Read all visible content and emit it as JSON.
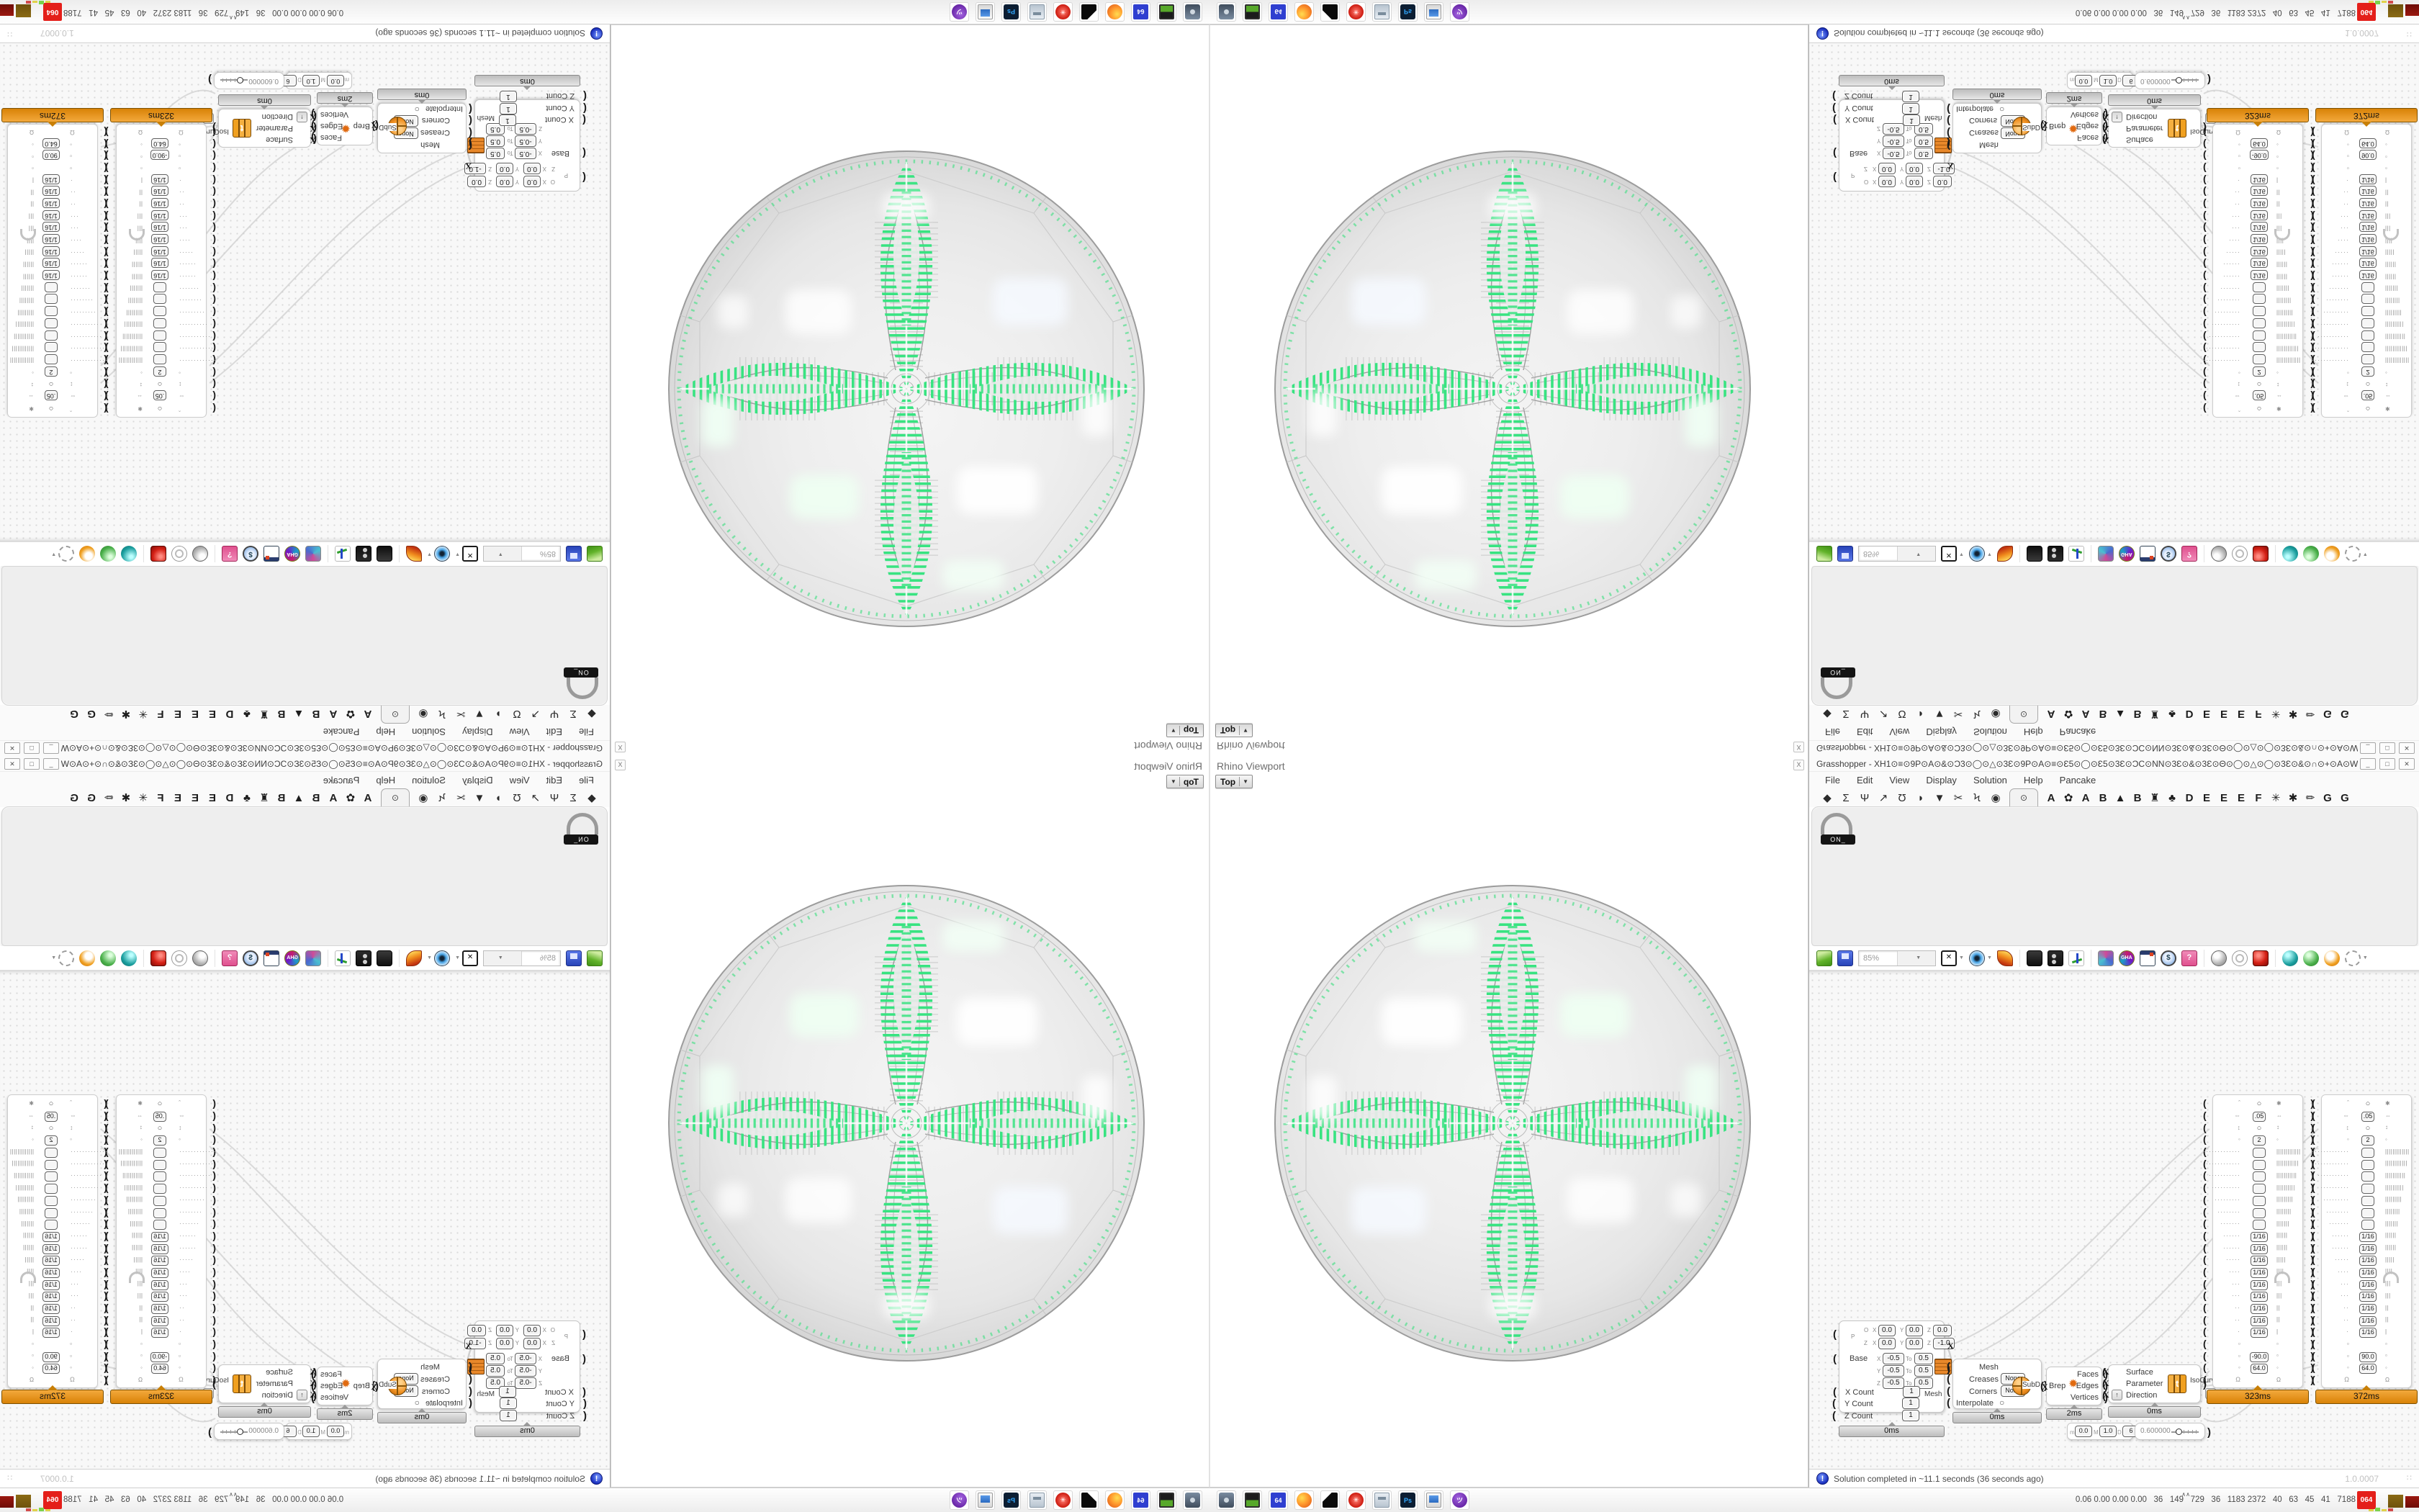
{
  "viewport": {
    "title": "Rhino Viewport",
    "camera": "Top",
    "camera_arrow": "▼",
    "close": "X"
  },
  "gh": {
    "title": "Grasshopper - XH1⊙≡⊙9P⊙A⊙&⊙Ɔ3⊙◯⊙△⊙3Ɛ⊙9P⊙A⊙≡⊙Ɛ5⊙◯⊙Ɛ5⊙3Ɛ⊙ƆC⊙NN⊙3Ɛ⊙&⊙3Ɛ⊙Θ⊙◯⊙△⊙◯⊙3Ɛ⊙&⊙∩⊙+⊙A⊙W⊙&⊙∩⊙ƆC⊙○⊙○⊙○⊙○⊙○⊙○⊙Ɔ_",
    "buttons": {
      "min": "_",
      "max": "□",
      "close": "✕"
    },
    "menu": [
      "File",
      "Edit",
      "View",
      "Display",
      "Solution",
      "Help",
      "Pancake"
    ],
    "tab_icons": [
      "◆",
      "Σ",
      "Ψ",
      "↗",
      "Ʊ",
      "◗",
      "▼",
      "✂",
      "Ϟ",
      "◉"
    ],
    "selected_tab_icon": "⊙",
    "tab_letters": [
      "A",
      "✿",
      "A",
      "B",
      "▲",
      "B",
      "♜",
      "♣",
      "D",
      "E",
      "E",
      "E",
      "F",
      "✳",
      "✱",
      "✏",
      "G",
      "G"
    ],
    "ribbon_chip": "ON_",
    "toolbar": {
      "zoom": "85%"
    },
    "status": {
      "icon": "!",
      "text": "Solution completed in ~11.1 seconds (36 seconds ago)",
      "version": "1.0.0007",
      "grip": "∷"
    }
  },
  "canvas": {
    "meshbox": {
      "p": "P",
      "o_l": "O",
      "z_l": "Z",
      "v": [
        "0.0",
        "0.0",
        "0.0",
        "0.0",
        "0.0",
        "-1.0"
      ],
      "ax": "X",
      "ay": "Y",
      "az": "Z",
      "to": "To",
      "dom_a": "-0.5",
      "dom_b": "0.5",
      "base": "Base",
      "mesh": "Mesh",
      "cx": "X Count",
      "cy": "Y Count",
      "cz": "Z Count",
      "one": "1",
      "time": "0ms"
    },
    "subd": {
      "mesh": "Mesh",
      "creases": "Creases",
      "corners": "Corners",
      "none": "None",
      "interp": "Interpolate",
      "out": "SubD",
      "time": "0ms"
    },
    "brep": {
      "in": "Brep",
      "o1": "Faces",
      "o2": "Edges",
      "o3": "Vertices",
      "time": "2ms"
    },
    "iso": {
      "i1": "Surface",
      "i2": "Parameter",
      "i3": "Direction",
      "out": "IsoCurve",
      "up": "↑",
      "down": "↓",
      "time": "0ms"
    },
    "mdm": {
      "m": "m",
      "mv": "0.0",
      "M": "M",
      "Mv": "1.0",
      "D": "D",
      "Dv": "6"
    },
    "slider": {
      "value": "0.600000"
    },
    "groups": [
      {
        "time": "323ms",
        "rows": [
          {
            "k": "sym",
            "l": "ˆ",
            "c": "○",
            "r": "✱"
          },
          {
            "k": "box",
            "l": "⇔",
            "v": ".05",
            "r": "⇔"
          },
          {
            "k": "sym",
            "l": "↕",
            "c": "○",
            "r": "↕"
          },
          {
            "k": "box",
            "l": "◦",
            "v": "2",
            "r": "◦"
          },
          {
            "k": "led",
            "d": 13
          },
          {
            "k": "led",
            "d": 12
          },
          {
            "k": "led",
            "d": 11
          },
          {
            "k": "led",
            "d": 10
          },
          {
            "k": "led",
            "d": 9
          },
          {
            "k": "led",
            "d": 8
          },
          {
            "k": "led",
            "d": 7
          },
          {
            "k": "led",
            "v": "1/16",
            "d": 6
          },
          {
            "k": "led",
            "v": "1/16",
            "d": 6
          },
          {
            "k": "led",
            "v": "1/16",
            "d": 5
          },
          {
            "k": "led",
            "v": "1/16",
            "d": 4
          },
          {
            "k": "led",
            "v": "1/16",
            "d": 3
          },
          {
            "k": "led",
            "v": "1/16",
            "d": 3
          },
          {
            "k": "led",
            "v": "1/16",
            "d": 2
          },
          {
            "k": "led",
            "v": "1/16",
            "d": 2
          },
          {
            "k": "led",
            "v": "1/16",
            "d": 1
          },
          {
            "k": "sym",
            "l": "▫",
            "c": "",
            "r": "▫"
          },
          {
            "k": "box",
            "l": "▫",
            "v": "-90.0",
            "r": "▫"
          },
          {
            "k": "box",
            "l": "◦",
            "v": "64.0",
            "r": "◦"
          },
          {
            "k": "sym",
            "l": "Ω",
            "c": "",
            "r": "Ω"
          }
        ]
      },
      {
        "time": "372ms",
        "rows": [
          {
            "k": "sym",
            "l": "ˆ",
            "c": "○",
            "r": "✱"
          },
          {
            "k": "box",
            "l": "⇔",
            "v": ".05",
            "r": "⇔"
          },
          {
            "k": "sym",
            "l": "↕",
            "c": "○",
            "r": "↕"
          },
          {
            "k": "box",
            "l": "◦",
            "v": "2",
            "r": "◦"
          },
          {
            "k": "led",
            "d": 13
          },
          {
            "k": "led",
            "d": 12
          },
          {
            "k": "led",
            "d": 11
          },
          {
            "k": "led",
            "d": 10
          },
          {
            "k": "led",
            "d": 9
          },
          {
            "k": "led",
            "d": 8
          },
          {
            "k": "led",
            "d": 7
          },
          {
            "k": "led",
            "v": "1/16",
            "d": 6
          },
          {
            "k": "led",
            "v": "1/16",
            "d": 6
          },
          {
            "k": "led",
            "v": "1/16",
            "d": 5
          },
          {
            "k": "led",
            "v": "1/16",
            "d": 4
          },
          {
            "k": "led",
            "v": "1/16",
            "d": 3
          },
          {
            "k": "led",
            "v": "1/16",
            "d": 3
          },
          {
            "k": "led",
            "v": "1/16",
            "d": 2
          },
          {
            "k": "led",
            "v": "1/16",
            "d": 2
          },
          {
            "k": "led",
            "v": "1/16",
            "d": 1
          },
          {
            "k": "sym",
            "l": "▫",
            "c": "",
            "r": "▫"
          },
          {
            "k": "box",
            "l": "▫",
            "v": "90.0",
            "r": "▫"
          },
          {
            "k": "box",
            "l": "◦",
            "v": "64.0",
            "r": "◦"
          },
          {
            "k": "sym",
            "l": "Ω",
            "c": "",
            "r": "Ω"
          }
        ]
      }
    ]
  },
  "taskbar": {
    "apps": [
      "screenshot-tool",
      "emulator",
      "backup-64",
      "firefox",
      "gimp",
      "settings-red",
      "file-manager",
      "photoshop",
      "remote-desktop",
      "chat-purple"
    ],
    "labels": {
      "backup-64": "64",
      "photoshop": "Ps",
      "settings-red": "✳",
      "chat-purple": "ツ"
    }
  },
  "tray": {
    "chevron": "∧∧",
    "stats": "0.06 0.00 0.00 0.00   36   149   729   36   1183 2372   40   63   45   41   7188",
    "badge": "064"
  }
}
